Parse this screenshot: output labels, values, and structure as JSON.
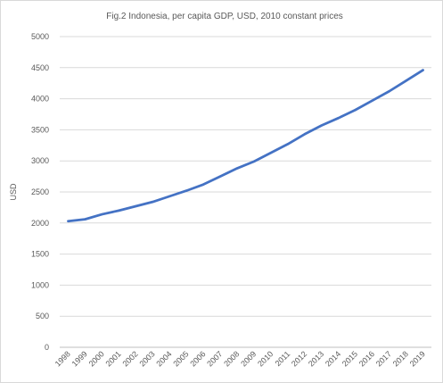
{
  "chart_data": {
    "type": "line",
    "title": "Fig.2 Indonesia, per capita GDP, USD, 2010 constant prices",
    "xlabel": "",
    "ylabel": "USD",
    "ylim": [
      0,
      5000
    ],
    "yticks": [
      0,
      500,
      1000,
      1500,
      2000,
      2500,
      3000,
      3500,
      4000,
      4500,
      5000
    ],
    "grid": true,
    "legend": "none",
    "categories": [
      "1998",
      "1999",
      "2000",
      "2001",
      "2002",
      "2003",
      "2004",
      "2005",
      "2006",
      "2007",
      "2008",
      "2009",
      "2010",
      "2011",
      "2012",
      "2013",
      "2014",
      "2015",
      "2016",
      "2017",
      "2018",
      "2019"
    ],
    "series": [
      {
        "values": [
          2030,
          2060,
          2140,
          2200,
          2270,
          2340,
          2430,
          2520,
          2620,
          2750,
          2880,
          2990,
          3130,
          3270,
          3430,
          3570,
          3690,
          3820,
          3970,
          4120,
          4290,
          4460
        ],
        "color": "#4472c4"
      }
    ]
  }
}
